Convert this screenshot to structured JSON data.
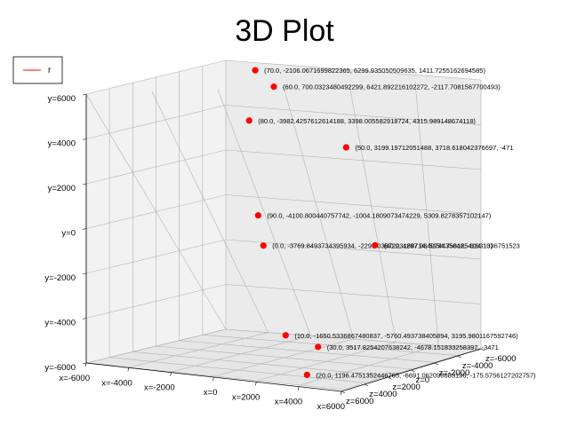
{
  "chart_data": {
    "type": "scatter",
    "title": "3D Plot",
    "legend": {
      "entries": [
        "r"
      ],
      "placement": "top-left"
    },
    "grid": true,
    "x_ticks": [
      "x=-6000",
      "x=-4000",
      "x=-2000",
      "x=0",
      "x=2000",
      "x=4000",
      "x=6000"
    ],
    "y_ticks": [
      "y=6000",
      "y=4000",
      "y=2000",
      "y=0",
      "y=-2000",
      "y=-4000",
      "y=-6000"
    ],
    "z_ticks": [
      "z=6000",
      "z=4000",
      "z=2000",
      "z=0",
      "z=-2000",
      "z=-4000",
      "z=-6000"
    ],
    "series": [
      {
        "name": "r",
        "color": "#ff0000",
        "points": [
          {
            "label": "(0.0, -3769.8493734395934, -2291.0367223168714, 5154.758125416313)"
          },
          {
            "label": "(10.0, -1650.5336867480837, -5760.493738405894, 3195.9801167592746)"
          },
          {
            "label": "(20.0, 1196.4751352446765, -6691.062090683196, -175.5756127202757)"
          },
          {
            "label": "(30.0, 3517.8254207638242, -4678.151833258397, -3471"
          },
          {
            "label": "(40.0, 4297.984074435048, -614.1036751523"
          },
          {
            "label": "(50.0, 3199.19712051488, 3718.618042376697, -471"
          },
          {
            "label": "(60.0, 700.0323480492299, 6421.892216102272, -2117.7081567700493)"
          },
          {
            "label": "(70.0, -2106.0671699822365, 6299.935050509635, 1411.7255162694585)"
          },
          {
            "label": "(80.0, -3982.4257612614188, 3398.005582918724, 4315.989148674118)"
          },
          {
            "label": "(90.0, -4100.800440757742, -1004.1809073474229, 5309.8278357102147)"
          }
        ]
      }
    ]
  }
}
